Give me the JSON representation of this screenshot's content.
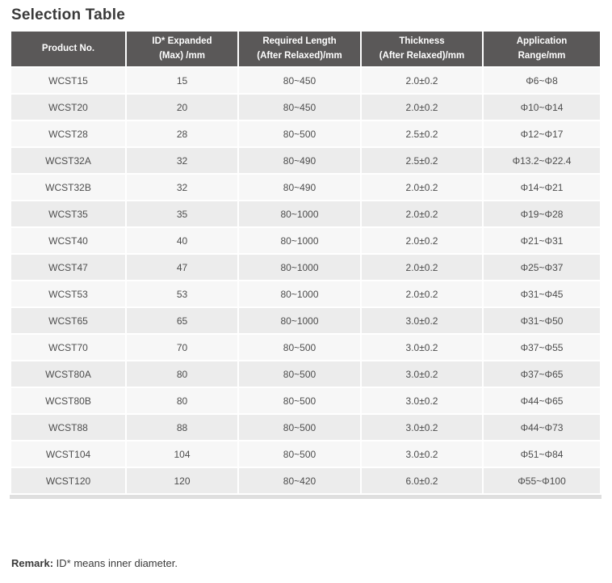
{
  "title": "Selection Table",
  "table": {
    "columns": [
      "Product No.",
      "ID* Expanded\n(Max) /mm",
      "Required Length\n(After Relaxed)/mm",
      "Thickness\n(After Relaxed)/mm",
      "Application\nRange/mm"
    ],
    "rows": [
      [
        "WCST15",
        "15",
        "80~450",
        "2.0±0.2",
        "Φ6~Φ8"
      ],
      [
        "WCST20",
        "20",
        "80~450",
        "2.0±0.2",
        "Φ10~Φ14"
      ],
      [
        "WCST28",
        "28",
        "80~500",
        "2.5±0.2",
        "Φ12~Φ17"
      ],
      [
        "WCST32A",
        "32",
        "80~490",
        "2.5±0.2",
        "Φ13.2~Φ22.4"
      ],
      [
        "WCST32B",
        "32",
        "80~490",
        "2.0±0.2",
        "Φ14~Φ21"
      ],
      [
        "WCST35",
        "35",
        "80~1000",
        "2.0±0.2",
        "Φ19~Φ28"
      ],
      [
        "WCST40",
        "40",
        "80~1000",
        "2.0±0.2",
        "Φ21~Φ31"
      ],
      [
        "WCST47",
        "47",
        "80~1000",
        "2.0±0.2",
        "Φ25~Φ37"
      ],
      [
        "WCST53",
        "53",
        "80~1000",
        "2.0±0.2",
        "Φ31~Φ45"
      ],
      [
        "WCST65",
        "65",
        "80~1000",
        "3.0±0.2",
        "Φ31~Φ50"
      ],
      [
        "WCST70",
        "70",
        "80~500",
        "3.0±0.2",
        "Φ37~Φ55"
      ],
      [
        "WCST80A",
        "80",
        "80~500",
        "3.0±0.2",
        "Φ37~Φ65"
      ],
      [
        "WCST80B",
        "80",
        "80~500",
        "3.0±0.2",
        "Φ44~Φ65"
      ],
      [
        "WCST88",
        "88",
        "80~500",
        "3.0±0.2",
        "Φ44~Φ73"
      ],
      [
        "WCST104",
        "104",
        "80~500",
        "3.0±0.2",
        "Φ51~Φ84"
      ],
      [
        "WCST120",
        "120",
        "80~420",
        "6.0±0.2",
        "Φ55~Φ100"
      ]
    ]
  },
  "remark": {
    "label": "Remark:",
    "text": " ID* means inner diameter."
  },
  "colors": {
    "header_bg": "#5a5858",
    "header_text": "#ffffff",
    "row_odd_bg": "#f7f7f7",
    "row_even_bg": "#ececec",
    "bottom_border": "#dfdfdf",
    "body_text": "#4d4d4d",
    "title_text": "#3a3a3a"
  }
}
